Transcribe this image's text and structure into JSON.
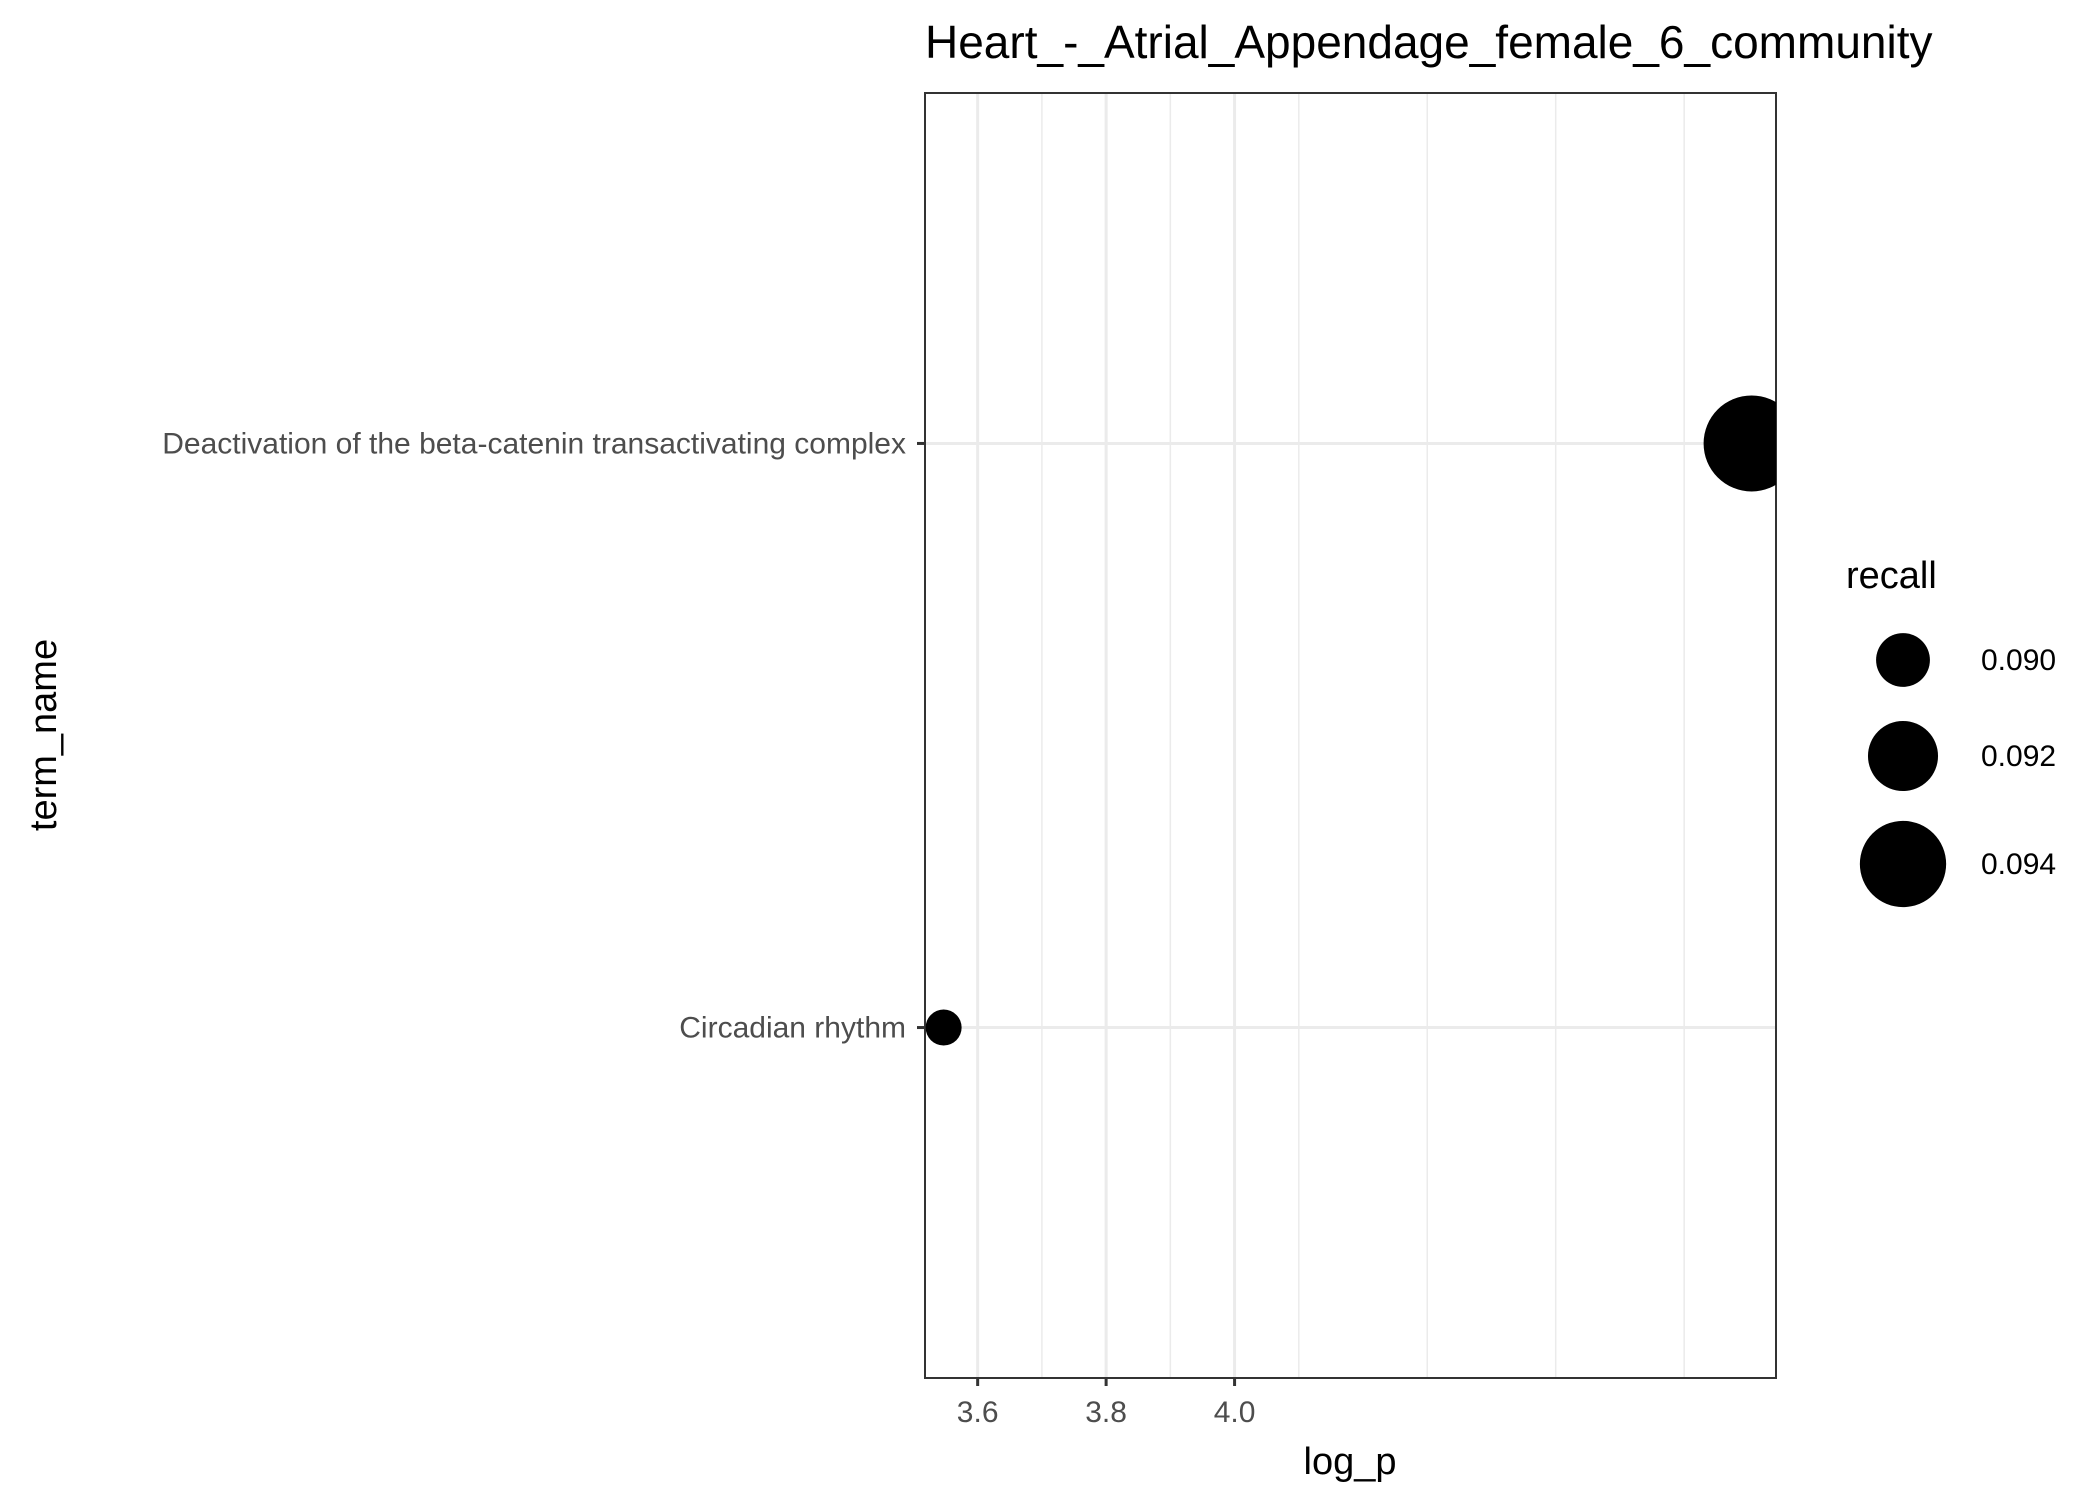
{
  "chart_data": {
    "type": "scatter",
    "title": "Heart_-_Atrial_Appendage_female_6_community",
    "xlabel": "log_p",
    "ylabel": "term_name",
    "xlim": [
      3.518,
      4.843
    ],
    "x_ticks": [
      3.6,
      3.8,
      4.0
    ],
    "x_tick_labels": [
      "3.6",
      "3.8",
      "4.0"
    ],
    "categories": [
      "Deactivation of the beta-catenin transactivating complex",
      "Circadian rhythm"
    ],
    "points": [
      {
        "term_name": "Deactivation of the beta-catenin transactivating complex",
        "log_p": 4.805,
        "recall": 0.0952
      },
      {
        "term_name": "Circadian rhythm",
        "log_p": 3.547,
        "recall": 0.0878
      }
    ],
    "grid": true,
    "legend": {
      "title": "recall",
      "position": "right",
      "entries": [
        {
          "value": 0.09,
          "label": "0.090"
        },
        {
          "value": 0.092,
          "label": "0.092"
        },
        {
          "value": 0.094,
          "label": "0.094"
        }
      ]
    },
    "colors": {
      "point": "#000000",
      "grid": "#ebebeb",
      "panel_border": "#333333",
      "tick_text": "#4d4d4d"
    }
  }
}
